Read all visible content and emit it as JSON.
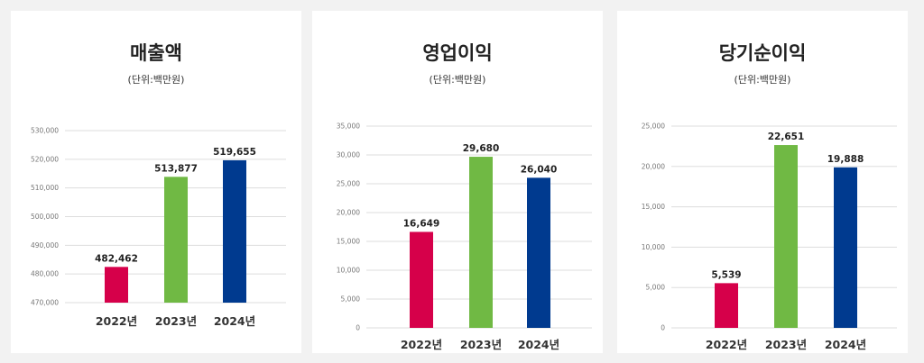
{
  "chart_data": [
    {
      "type": "bar",
      "title": "매출액",
      "subtitle": "(단위:백만원)",
      "categories": [
        "2022년",
        "2023년",
        "2024년"
      ],
      "values": [
        482462,
        513877,
        519655
      ],
      "value_labels": [
        "482,462",
        "513,877",
        "519,655"
      ],
      "ylim": [
        470000,
        530000
      ],
      "yticks": [
        470000,
        480000,
        490000,
        500000,
        510000,
        520000,
        530000
      ],
      "ytick_labels": [
        "470,000",
        "480,000",
        "490,000",
        "500,000",
        "510,000",
        "520,000",
        "530,000"
      ],
      "bar_colors": [
        "#d6004a",
        "#70b944",
        "#003a8f"
      ],
      "grid": true,
      "legend": "none"
    },
    {
      "type": "bar",
      "title": "영업이익",
      "subtitle": "(단위:백만원)",
      "categories": [
        "2022년",
        "2023년",
        "2024년"
      ],
      "values": [
        16649,
        29680,
        26040
      ],
      "value_labels": [
        "16,649",
        "29,680",
        "26,040"
      ],
      "ylim": [
        0,
        35000
      ],
      "yticks": [
        0,
        5000,
        10000,
        15000,
        20000,
        25000,
        30000,
        35000
      ],
      "ytick_labels": [
        "0",
        "5,000",
        "10,000",
        "15,000",
        "20,000",
        "25,000",
        "30,000",
        "35,000"
      ],
      "bar_colors": [
        "#d6004a",
        "#70b944",
        "#003a8f"
      ],
      "grid": true,
      "legend": "none"
    },
    {
      "type": "bar",
      "title": "당기순이익",
      "subtitle": "(단위:백만원)",
      "categories": [
        "2022년",
        "2023년",
        "2024년"
      ],
      "values": [
        5539,
        22651,
        19888
      ],
      "value_labels": [
        "5,539",
        "22,651",
        "19,888"
      ],
      "ylim": [
        0,
        25000
      ],
      "yticks": [
        0,
        5000,
        10000,
        15000,
        20000,
        25000
      ],
      "ytick_labels": [
        "0",
        "5,000",
        "10,000",
        "15,000",
        "20,000",
        "25,000"
      ],
      "bar_colors": [
        "#d6004a",
        "#70b944",
        "#003a8f"
      ],
      "grid": true,
      "legend": "none"
    }
  ]
}
